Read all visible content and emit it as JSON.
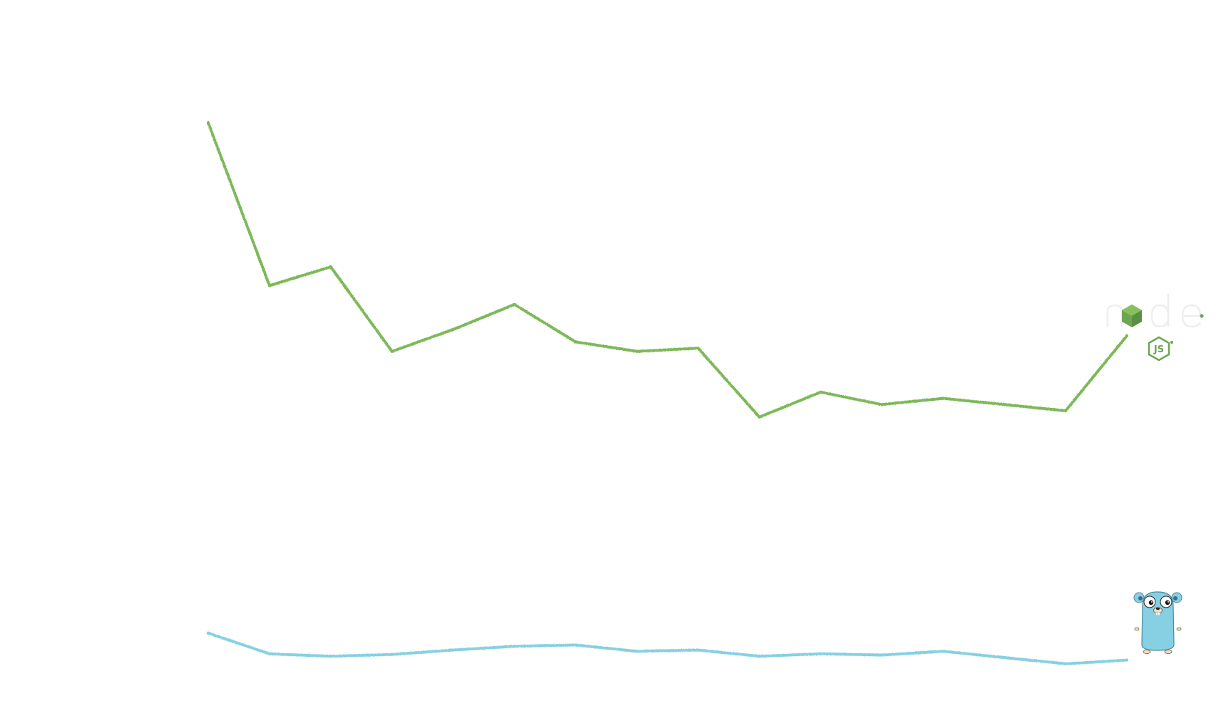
{
  "chart_data": {
    "type": "line",
    "title": "",
    "xlabel": "",
    "ylabel": "",
    "grid": false,
    "legend": "none",
    "x": [
      1,
      2,
      3,
      4,
      5,
      6,
      7,
      8,
      9,
      10,
      11,
      12,
      13,
      14,
      15,
      16
    ],
    "ylim": [
      0,
      100
    ],
    "series": [
      {
        "key": "node",
        "logo": "nodejs-logo",
        "logo_text": "node js",
        "color": "#7cb859",
        "values": [
          92,
          66,
          69,
          55.5,
          59,
          63,
          57,
          55.5,
          56,
          45,
          49,
          47,
          48,
          47,
          46,
          58
        ]
      },
      {
        "key": "go",
        "logo": "go-gopher-mascot",
        "color": "#87cfe3",
        "values": [
          10.5,
          7.2,
          6.8,
          7.1,
          7.8,
          8.4,
          8.6,
          7.6,
          7.8,
          6.8,
          7.2,
          7.0,
          7.6,
          6.6,
          5.6,
          6.2
        ]
      }
    ]
  }
}
